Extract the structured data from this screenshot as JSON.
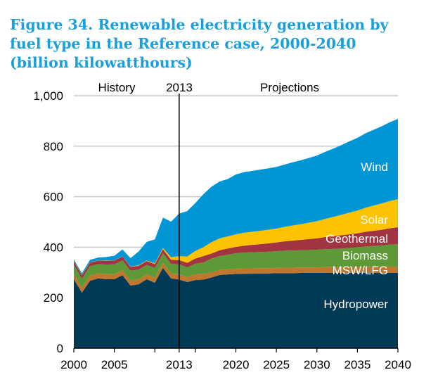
{
  "chart_data": {
    "type": "area",
    "stacked": true,
    "title": "Figure 34. Renewable electricity generation by fuel type in the Reference case, 2000-2040 (billion kilowatthours)",
    "xlabel": "",
    "ylabel": "",
    "xlim": [
      2000,
      2040
    ],
    "ylim": [
      0,
      1000
    ],
    "grid": true,
    "xticks": [
      "2000",
      "2005",
      "2013",
      "2020",
      "2025",
      "2030",
      "2035",
      "2040"
    ],
    "yticks": [
      "0",
      "200",
      "400",
      "600",
      "800",
      "1,000"
    ],
    "annotations": {
      "history": "History",
      "divider": "2013",
      "projections": "Projections"
    },
    "x": [
      2000,
      2001,
      2002,
      2003,
      2004,
      2005,
      2006,
      2007,
      2008,
      2009,
      2010,
      2011,
      2012,
      2013,
      2014,
      2015,
      2016,
      2017,
      2018,
      2019,
      2020,
      2021,
      2022,
      2023,
      2024,
      2025,
      2026,
      2027,
      2028,
      2029,
      2030,
      2031,
      2032,
      2033,
      2034,
      2035,
      2036,
      2037,
      2038,
      2039,
      2040
    ],
    "series": [
      {
        "name": "Hydropower",
        "color": "#003a57",
        "values": [
          273,
          220,
          267,
          276,
          273,
          273,
          289,
          248,
          253,
          273,
          259,
          318,
          276,
          272,
          262,
          270,
          272,
          280,
          290,
          292,
          294,
          295,
          295,
          296,
          296,
          297,
          297,
          297,
          298,
          298,
          298,
          298,
          298,
          298,
          298,
          298,
          298,
          298,
          298,
          298,
          298
        ]
      },
      {
        "name": "MSW/LFG",
        "color": "#c0762c",
        "values": [
          20,
          20,
          20,
          20,
          20,
          20,
          20,
          20,
          20,
          20,
          20,
          20,
          20,
          20,
          20,
          22,
          23,
          20,
          20,
          20,
          20,
          21,
          21,
          21,
          21,
          21,
          22,
          22,
          22,
          22,
          22,
          23,
          23,
          23,
          23,
          23,
          24,
          24,
          24,
          25,
          25
        ]
      },
      {
        "name": "Biomass",
        "color": "#5e9937",
        "values": [
          37,
          35,
          38,
          37,
          38,
          39,
          39,
          39,
          38,
          37,
          39,
          38,
          38,
          40,
          38,
          43,
          45,
          55,
          55,
          58,
          62,
          63,
          64,
          64,
          65,
          66,
          67,
          68,
          68,
          69,
          70,
          71,
          72,
          74,
          76,
          79,
          81,
          83,
          85,
          87,
          89
        ]
      },
      {
        "name": "Geothermal",
        "color": "#a23341",
        "values": [
          14,
          14,
          14,
          14,
          15,
          15,
          15,
          15,
          15,
          15,
          15,
          16,
          16,
          17,
          18,
          20,
          25,
          20,
          23,
          25,
          25,
          27,
          29,
          31,
          33,
          35,
          37,
          39,
          41,
          43,
          45,
          48,
          50,
          52,
          54,
          55,
          58,
          60,
          62,
          65,
          67
        ]
      },
      {
        "name": "Solar",
        "color": "#fdc300",
        "values": [
          1,
          1,
          1,
          1,
          1,
          1,
          1,
          1,
          2,
          2,
          3,
          5,
          10,
          16,
          25,
          30,
          35,
          45,
          47,
          48,
          50,
          51,
          52,
          53,
          54,
          55,
          57,
          60,
          62,
          65,
          68,
          72,
          77,
          81,
          86,
          90,
          95,
          100,
          104,
          108,
          111
        ]
      },
      {
        "name": "Wind",
        "color": "#0096d6",
        "values": [
          6,
          7,
          10,
          11,
          14,
          18,
          27,
          34,
          55,
          74,
          95,
          120,
          141,
          168,
          180,
          190,
          210,
          220,
          225,
          227,
          237,
          240,
          241,
          242,
          243,
          244,
          247,
          250,
          253,
          256,
          260,
          265,
          270,
          276,
          282,
          288,
          295,
          300,
          306,
          312,
          318
        ]
      }
    ]
  }
}
